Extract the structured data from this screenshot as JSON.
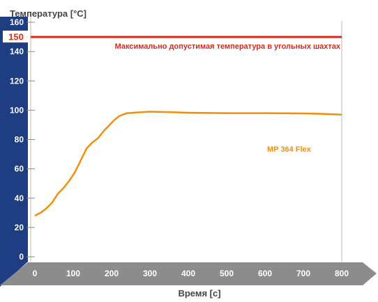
{
  "chart_data": {
    "type": "line",
    "ylabel": "Температура [°C]",
    "xlabel": "Время [с]",
    "xlim": [
      0,
      800
    ],
    "ylim": [
      0,
      160
    ],
    "x_ticks": [
      "0",
      "100",
      "200",
      "300",
      "400",
      "500",
      "600",
      "700",
      "800"
    ],
    "y_ticks": [
      "0",
      "20",
      "40",
      "60",
      "80",
      "100",
      "120",
      "140",
      "160"
    ],
    "grid": false,
    "series": [
      {
        "name": "MP 364 Flex",
        "x": [
          0,
          15,
          30,
          45,
          60,
          75,
          90,
          105,
          120,
          135,
          150,
          165,
          180,
          195,
          210,
          220,
          240,
          270,
          300,
          350,
          400,
          500,
          600,
          700,
          750,
          800
        ],
        "y": [
          28,
          30,
          33,
          37,
          43,
          47,
          52,
          58,
          66,
          74,
          78,
          81,
          86,
          90,
          94,
          96,
          98,
          98.5,
          99,
          98.7,
          98.3,
          98,
          98,
          97.8,
          97.5,
          97
        ]
      }
    ],
    "reference_line": {
      "value": 150,
      "value_label": "150",
      "label": "Максимально допустимая температура в угольных шахтах",
      "color": "#d62b1f"
    },
    "colors": {
      "series": "#f0900a",
      "axis_band": "#1e3d82",
      "x_band": "#8c8c8c",
      "axis_text": "#ffffff",
      "title_text": "#444444"
    }
  }
}
